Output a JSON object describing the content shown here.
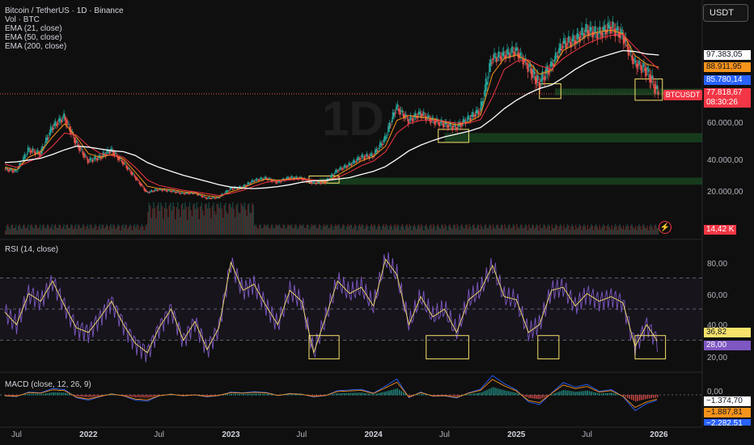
{
  "header": {
    "title": "Bitcoin / TetherUS · 1D · Binance",
    "indicators": [
      "Vol · BTC",
      "EMA (21, close)",
      "EMA (50, close)",
      "EMA (200, close)"
    ],
    "currency": "USDT",
    "watermark": "1D"
  },
  "price_axis": {
    "labels": [
      "60.000,00",
      "40.000,00",
      "20.000,00"
    ],
    "badges": [
      {
        "text": "97.383,05",
        "color": "#ffffff",
        "text_color": "#131722"
      },
      {
        "text": "88.911,95",
        "color": "#f7931a",
        "text_color": "#131722"
      },
      {
        "text": "85.780,14",
        "color": "#2962ff",
        "text_color": "#ffffff"
      },
      {
        "text": "77.818,67",
        "color": "#f23645",
        "text_color": "#ffffff"
      },
      {
        "text": "08:30:26",
        "color": "#f23645",
        "text_color": "#ffffff"
      }
    ],
    "symbol_tag": "BTCUSDT",
    "volume_badge": "14,42 K"
  },
  "rsi": {
    "label": "RSI (14, close)",
    "axis_labels": [
      "80,00",
      "60,00",
      "40,00",
      "20,00"
    ],
    "badges": [
      {
        "text": "36,82",
        "color": "#f7e26b",
        "text_color": "#131722"
      },
      {
        "text": "28,00",
        "color": "#7e57c2",
        "text_color": "#ffffff"
      }
    ]
  },
  "macd": {
    "label": "MACD (close, 12, 26, 9)",
    "axis_labels": [
      "0,00"
    ],
    "badges": [
      {
        "text": "−1.374,70",
        "color": "#ffffff",
        "text_color": "#131722"
      },
      {
        "text": "−1.887,81",
        "color": "#f7931a",
        "text_color": "#131722"
      },
      {
        "text": "−2.282,51",
        "color": "#2962ff",
        "text_color": "#ffffff"
      }
    ]
  },
  "time_axis": [
    {
      "text": "Jul",
      "bold": false
    },
    {
      "text": "2022",
      "bold": true
    },
    {
      "text": "Jul",
      "bold": false
    },
    {
      "text": "2023",
      "bold": true
    },
    {
      "text": "Jul",
      "bold": false
    },
    {
      "text": "2024",
      "bold": true
    },
    {
      "text": "Jul",
      "bold": false
    },
    {
      "text": "2025",
      "bold": true
    },
    {
      "text": "Jul",
      "bold": false
    },
    {
      "text": "2026",
      "bold": true
    }
  ],
  "colors": {
    "background": "#0f0f0f",
    "candle_up": "#26a69a",
    "candle_down": "#ef5350",
    "ema21": "#f7931a",
    "ema50": "#f23645",
    "ema200": "#ffffff",
    "rsi": "#7e57c2",
    "rsi_ma": "#f7e26b",
    "support_zone": "#1f5f2a",
    "highlight_box": "#f7e26b",
    "macd": "#2962ff",
    "signal": "#f7931a"
  },
  "chart_data": {
    "type": "line",
    "symbol": "BTCUSDT",
    "timeframe": "1D",
    "x": [
      "2021-06-01",
      "2021-07-01",
      "2021-08-01",
      "2021-09-01",
      "2021-10-01",
      "2021-11-01",
      "2021-12-01",
      "2022-01-01",
      "2022-02-01",
      "2022-03-01",
      "2022-04-01",
      "2022-05-01",
      "2022-06-01",
      "2022-07-01",
      "2022-08-01",
      "2022-09-01",
      "2022-10-01",
      "2022-11-01",
      "2022-12-01",
      "2023-01-01",
      "2023-02-01",
      "2023-03-01",
      "2023-04-01",
      "2023-05-01",
      "2023-06-01",
      "2023-07-01",
      "2023-08-01",
      "2023-09-01",
      "2023-10-01",
      "2023-11-01",
      "2023-12-01",
      "2024-01-01",
      "2024-02-01",
      "2024-03-01",
      "2024-04-01",
      "2024-05-01",
      "2024-06-01",
      "2024-07-01",
      "2024-08-01",
      "2024-09-01",
      "2024-10-01",
      "2024-11-01",
      "2024-12-01",
      "2025-01-01",
      "2025-02-01",
      "2025-03-01",
      "2025-04-01",
      "2025-05-01",
      "2025-06-01",
      "2025-07-01",
      "2025-08-01",
      "2025-09-01",
      "2025-10-01",
      "2025-11-01",
      "2025-12-01",
      "2026-01-01"
    ],
    "series": [
      {
        "name": "BTCUSDT",
        "values": [
          35000,
          33500,
          46000,
          44000,
          58000,
          64000,
          50000,
          40000,
          42000,
          46000,
          39000,
          30000,
          20000,
          22000,
          21000,
          19500,
          19800,
          16500,
          16800,
          22500,
          23500,
          27500,
          29200,
          26500,
          29500,
          29000,
          26000,
          26600,
          34000,
          37500,
          42000,
          43000,
          52000,
          70000,
          62000,
          66000,
          62000,
          60000,
          58000,
          63000,
          68000,
          95000,
          97000,
          100000,
          90000,
          82000,
          90000,
          104000,
          106000,
          112000,
          110000,
          114000,
          109000,
          92000,
          88000,
          77800
        ]
      },
      {
        "name": "EMA (21, close)",
        "values": [
          36000,
          34500,
          42000,
          45000,
          53000,
          60000,
          53000,
          44000,
          42000,
          43500,
          41000,
          33000,
          24000,
          22500,
          22000,
          20500,
          19800,
          18000,
          17300,
          20500,
          22800,
          26000,
          28500,
          27800,
          28500,
          29300,
          27500,
          26600,
          31000,
          35500,
          40000,
          42500,
          48000,
          62000,
          65000,
          64000,
          63000,
          61000,
          59500,
          61000,
          65000,
          86000,
          95000,
          97500,
          93000,
          86000,
          87500,
          100000,
          104000,
          109000,
          111000,
          112000,
          110000,
          97000,
          91000,
          88900
        ]
      },
      {
        "name": "EMA (50, close)",
        "values": [
          38000,
          36000,
          39500,
          42500,
          48000,
          55000,
          54000,
          48000,
          44000,
          43000,
          42000,
          36000,
          28000,
          24500,
          23000,
          21500,
          20500,
          19300,
          18200,
          19500,
          21500,
          24000,
          26500,
          27500,
          28000,
          28700,
          28000,
          27300,
          29500,
          33000,
          37000,
          40000,
          45000,
          55000,
          60000,
          62000,
          62000,
          61500,
          60500,
          60500,
          62500,
          76000,
          88000,
          93000,
          94000,
          90000,
          88000,
          95000,
          100000,
          104000,
          107000,
          109000,
          109500,
          102000,
          95000,
          88000
        ]
      },
      {
        "name": "EMA (200, close)",
        "values": [
          39000,
          39500,
          40500,
          41500,
          43500,
          46000,
          48000,
          47500,
          46500,
          45500,
          45000,
          43000,
          39000,
          36000,
          33500,
          31000,
          29000,
          27000,
          25000,
          23500,
          22800,
          22500,
          23000,
          23800,
          25000,
          26500,
          27500,
          27800,
          28500,
          29500,
          31500,
          33500,
          36500,
          41000,
          45500,
          48500,
          51000,
          53000,
          54500,
          56000,
          58000,
          63000,
          69000,
          74000,
          78000,
          80000,
          81500,
          84500,
          88000,
          92000,
          95500,
          98000,
          100000,
          99500,
          98000,
          97400
        ]
      }
    ],
    "y_scale": "linear",
    "support_zones": [
      {
        "from": 77000,
        "to": 80000
      },
      {
        "from": 50000,
        "to": 55000
      },
      {
        "from": 25000,
        "to": 29500
      }
    ],
    "rsi": {
      "name": "RSI (14, close)",
      "levels": [
        70,
        50,
        30
      ],
      "values": [
        48,
        40,
        60,
        55,
        68,
        52,
        38,
        35,
        45,
        55,
        40,
        28,
        22,
        38,
        50,
        30,
        42,
        24,
        38,
        80,
        62,
        66,
        52,
        40,
        62,
        55,
        22,
        45,
        68,
        60,
        64,
        52,
        82,
        72,
        40,
        58,
        45,
        50,
        35,
        56,
        62,
        78,
        58,
        56,
        35,
        40,
        62,
        64,
        52,
        60,
        55,
        58,
        54,
        26,
        40,
        28
      ]
    },
    "macd": {
      "name": "MACD (close, 12, 26, 9)",
      "values": [
        -300,
        -500,
        800,
        600,
        1800,
        1500,
        -800,
        -1500,
        -500,
        300,
        -300,
        -1500,
        -1800,
        -300,
        200,
        -300,
        0,
        -600,
        -200,
        800,
        600,
        900,
        700,
        -200,
        400,
        200,
        -600,
        -200,
        1200,
        1400,
        1600,
        500,
        2500,
        4500,
        -800,
        800,
        -400,
        -300,
        -900,
        600,
        1600,
        5500,
        3200,
        1400,
        -2000,
        -2800,
        500,
        3500,
        2200,
        3000,
        1000,
        1500,
        -500,
        -4500,
        -2500,
        -1375
      ]
    }
  }
}
